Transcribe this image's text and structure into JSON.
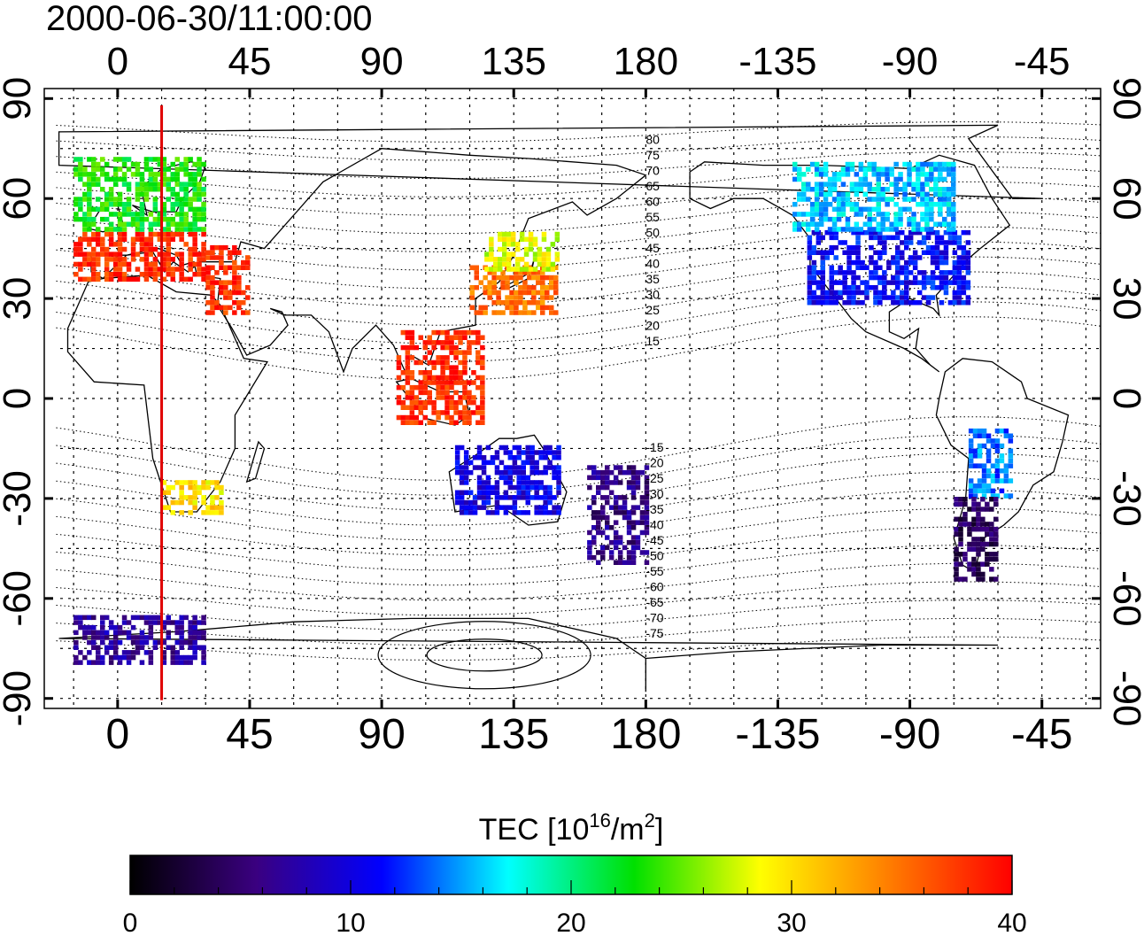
{
  "timestamp": "2000-06-30/11:00:00",
  "axes": {
    "lon_labels": [
      "0",
      "45",
      "90",
      "135",
      "180",
      "-135",
      "-90",
      "-45"
    ],
    "lat_labels": [
      "90",
      "60",
      "30",
      "0",
      "-30",
      "-60",
      "-90"
    ],
    "lon_range": [
      -25,
      335
    ],
    "lat_range": [
      -93,
      93
    ],
    "grid_spacing_deg": 15,
    "grid": true
  },
  "contour_labels": [
    "80",
    "75",
    "70",
    "65",
    "60",
    "55",
    "50",
    "45",
    "40",
    "35",
    "30",
    "25",
    "20",
    "15",
    "-15",
    "-20",
    "-25",
    "-30",
    "-35",
    "-40",
    "-45",
    "-50",
    "-55",
    "-60",
    "-65",
    "-70",
    "-75"
  ],
  "terminator_longitude": 15,
  "colorbar": {
    "title_prefix": "TEC  [10",
    "title_exp1": "16",
    "title_mid": "/m",
    "title_exp2": "2",
    "title_suffix": "]",
    "tick_labels": [
      "0",
      "10",
      "20",
      "30",
      "40"
    ],
    "min": 0,
    "max": 40,
    "colors": [
      "#000000",
      "#3a0080",
      "#0000ff",
      "#00ffff",
      "#00e000",
      "#ffff00",
      "#ff8000",
      "#ff0000"
    ]
  },
  "chart_data": {
    "type": "heatmap",
    "title": "2000-06-30/11:00:00",
    "xlabel": "",
    "ylabel": "",
    "value_label": "TEC [10^16/m^2]",
    "vmin": 0,
    "vmax": 40,
    "regions": [
      {
        "lon": [
          -15,
          30
        ],
        "lat": [
          35,
          50
        ],
        "tec": 38
      },
      {
        "lon": [
          -15,
          30
        ],
        "lat": [
          50,
          72
        ],
        "tec": 23
      },
      {
        "lon": [
          30,
          45
        ],
        "lat": [
          25,
          45
        ],
        "tec": 38
      },
      {
        "lon": [
          120,
          150
        ],
        "lat": [
          25,
          40
        ],
        "tec": 35
      },
      {
        "lon": [
          125,
          150
        ],
        "lat": [
          38,
          50
        ],
        "tec": 28
      },
      {
        "lon": [
          95,
          125
        ],
        "lat": [
          -8,
          20
        ],
        "tec": 38
      },
      {
        "lon": [
          -125,
          -70
        ],
        "lat": [
          28,
          50
        ],
        "tec": 11
      },
      {
        "lon": [
          -130,
          -75
        ],
        "lat": [
          50,
          70
        ],
        "tec": 16
      },
      {
        "lon": [
          -70,
          -55
        ],
        "lat": [
          -30,
          -10
        ],
        "tec": 14
      },
      {
        "lon": [
          -75,
          -60
        ],
        "lat": [
          -55,
          -30
        ],
        "tec": 4
      },
      {
        "lon": [
          115,
          150
        ],
        "lat": [
          -35,
          -15
        ],
        "tec": 10
      },
      {
        "lon": [
          160,
          180
        ],
        "lat": [
          -50,
          -20
        ],
        "tec": 6
      },
      {
        "lon": [
          15,
          35
        ],
        "lat": [
          -35,
          -25
        ],
        "tec": 30
      },
      {
        "lon": [
          -15,
          30
        ],
        "lat": [
          -80,
          -65
        ],
        "tec": 7
      }
    ]
  }
}
